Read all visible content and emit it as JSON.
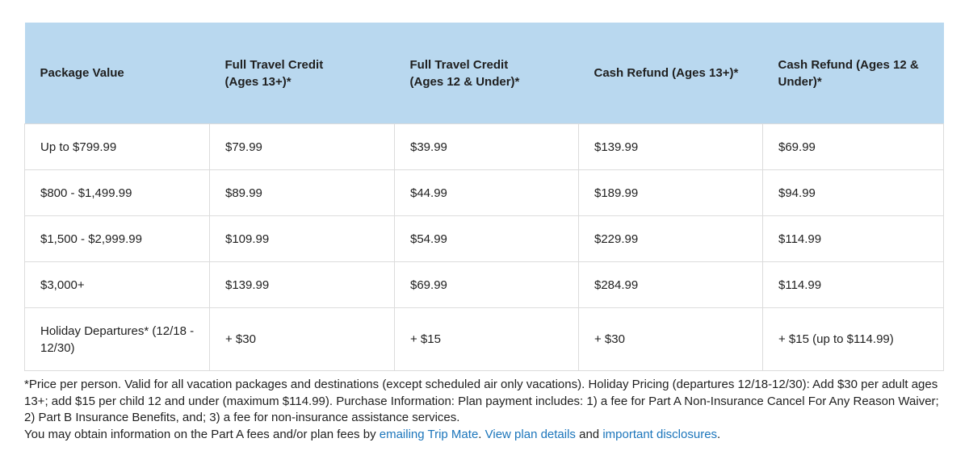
{
  "colors": {
    "header_bg": "#b9d8ef",
    "table_border": "#dcdcdc",
    "body_text": "#1f1f1f",
    "link": "#1b75bb"
  },
  "table": {
    "headers": [
      "Package Value",
      "Full Travel Credit\n(Ages 13+)*",
      "Full Travel Credit\n(Ages 12 & Under)*",
      "Cash Refund (Ages 13+)*",
      "Cash Refund (Ages 12 &\nUnder)*"
    ],
    "rows": [
      {
        "cells": [
          "Up to $799.99",
          "$79.99",
          "$39.99",
          "$139.99",
          "$69.99"
        ]
      },
      {
        "cells": [
          "$800 - $1,499.99",
          "$89.99",
          "$44.99",
          "$189.99",
          "$94.99"
        ]
      },
      {
        "cells": [
          "$1,500 - $2,999.99",
          "$109.99",
          "$54.99",
          "$229.99",
          "$114.99"
        ]
      },
      {
        "cells": [
          "$3,000+",
          "$139.99",
          "$69.99",
          "$284.99",
          "$114.99"
        ]
      },
      {
        "cells": [
          "Holiday Departures* (12/18 - 12/30)",
          "+ $30",
          "+ $15",
          "+ $30",
          "+ $15 (up to $114.99)"
        ]
      }
    ]
  },
  "footnote": {
    "pricing_text": "*Price per person. Valid for all vacation packages and destinations (except scheduled air only vacations). Holiday Pricing (departures 12/18-12/30): Add $30 per adult ages 13+; add $15 per child 12 and under (maximum $114.99). Purchase Information: Plan payment includes: 1) a fee for Part A Non-Insurance Cancel For Any Reason Waiver; 2) Part B Insurance Benefits, and; 3) a fee for non-insurance assistance services.",
    "contact_prefix": "You may obtain information on the Part A fees and/or plan fees by ",
    "links": [
      {
        "label": "emailing Trip Mate"
      },
      {
        "label": "View plan details"
      },
      {
        "label": "important disclosures"
      }
    ],
    "sep_after_email": ". ",
    "sep_and": " and ",
    "suffix": "."
  }
}
